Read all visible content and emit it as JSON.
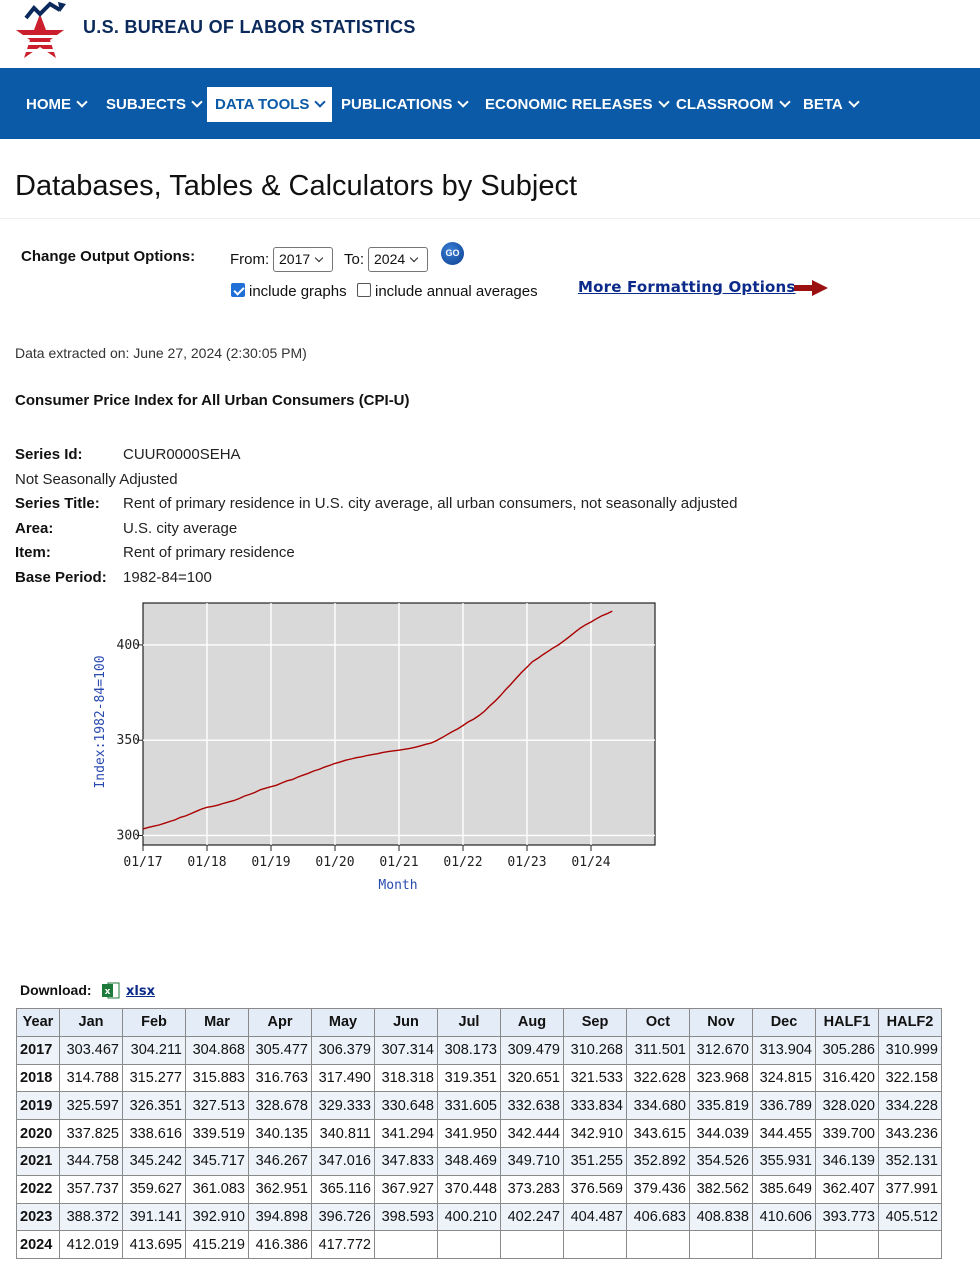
{
  "header": {
    "brand": "U.S. BUREAU OF LABOR STATISTICS"
  },
  "nav": [
    {
      "label": "HOME",
      "active": false
    },
    {
      "label": "SUBJECTS",
      "active": false
    },
    {
      "label": "DATA TOOLS",
      "active": true
    },
    {
      "label": "PUBLICATIONS",
      "active": false
    },
    {
      "label": "ECONOMIC RELEASES",
      "active": false
    },
    {
      "label": "CLASSROOM",
      "active": false
    },
    {
      "label": "BETA",
      "active": false
    }
  ],
  "page": {
    "title": "Databases, Tables & Calculators by Subject",
    "options": {
      "label": "Change Output Options:",
      "from_label": "From:",
      "from_value": "2017",
      "to_label": "To:",
      "to_value": "2024",
      "go_label": "GO",
      "include_graphs": "include graphs",
      "include_graphs_checked": true,
      "include_annual": "include annual averages",
      "include_annual_checked": false,
      "more_formatting": "More Formatting Options"
    },
    "extracted": "Data extracted on: June 27, 2024 (2:30:05 PM)",
    "survey_title": "Consumer Price Index for All Urban Consumers (CPI-U)",
    "series": {
      "id_label": "Series Id:",
      "id_value": "CUUR0000SEHA",
      "adjustment": "Not Seasonally Adjusted",
      "title_label": "Series Title:",
      "title_value": "Rent of primary residence in U.S. city average, all urban consumers, not seasonally adjusted",
      "area_label": "Area:",
      "area_value": "U.S. city average",
      "item_label": "Item:",
      "item_value": "Rent of primary residence",
      "base_label": "Base Period:",
      "base_value": "1982-84=100"
    },
    "download_label": "Download:",
    "download_link": "xlsx"
  },
  "colors": {
    "nav_bg": "#0b5aa7",
    "line": "#aa0000",
    "plot_bg": "#d9d9d9"
  },
  "chart_data": {
    "type": "line",
    "xlabel": "Month",
    "ylabel": "Index:1982-84=100",
    "x_ticks": [
      "01/17",
      "01/18",
      "01/19",
      "01/20",
      "01/21",
      "01/22",
      "01/23",
      "01/24"
    ],
    "y_ticks": [
      300,
      350,
      400
    ],
    "ylim": [
      295,
      422
    ],
    "grid": true,
    "series": [
      {
        "values": [
          303.467,
          304.211,
          304.868,
          305.477,
          306.379,
          307.314,
          308.173,
          309.479,
          310.268,
          311.501,
          312.67,
          313.904,
          314.788,
          315.277,
          315.883,
          316.763,
          317.49,
          318.318,
          319.351,
          320.651,
          321.533,
          322.628,
          323.968,
          324.815,
          325.597,
          326.351,
          327.513,
          328.678,
          329.333,
          330.648,
          331.605,
          332.638,
          333.834,
          334.68,
          335.819,
          336.789,
          337.825,
          338.616,
          339.519,
          340.135,
          340.811,
          341.294,
          341.95,
          342.444,
          342.91,
          343.615,
          344.039,
          344.455,
          344.758,
          345.242,
          345.717,
          346.267,
          347.016,
          347.833,
          348.469,
          349.71,
          351.255,
          352.892,
          354.526,
          355.931,
          357.737,
          359.627,
          361.083,
          362.951,
          365.116,
          367.927,
          370.448,
          373.283,
          376.569,
          379.436,
          382.562,
          385.649,
          388.372,
          391.141,
          392.91,
          394.898,
          396.726,
          398.593,
          400.21,
          402.247,
          404.487,
          406.683,
          408.838,
          410.606,
          412.019,
          413.695,
          415.219,
          416.386,
          417.772
        ]
      }
    ]
  },
  "table": {
    "headers": [
      "Year",
      "Jan",
      "Feb",
      "Mar",
      "Apr",
      "May",
      "Jun",
      "Jul",
      "Aug",
      "Sep",
      "Oct",
      "Nov",
      "Dec",
      "HALF1",
      "HALF2"
    ],
    "rows": [
      [
        "2017",
        "303.467",
        "304.211",
        "304.868",
        "305.477",
        "306.379",
        "307.314",
        "308.173",
        "309.479",
        "310.268",
        "311.501",
        "312.670",
        "313.904",
        "305.286",
        "310.999"
      ],
      [
        "2018",
        "314.788",
        "315.277",
        "315.883",
        "316.763",
        "317.490",
        "318.318",
        "319.351",
        "320.651",
        "321.533",
        "322.628",
        "323.968",
        "324.815",
        "316.420",
        "322.158"
      ],
      [
        "2019",
        "325.597",
        "326.351",
        "327.513",
        "328.678",
        "329.333",
        "330.648",
        "331.605",
        "332.638",
        "333.834",
        "334.680",
        "335.819",
        "336.789",
        "328.020",
        "334.228"
      ],
      [
        "2020",
        "337.825",
        "338.616",
        "339.519",
        "340.135",
        "340.811",
        "341.294",
        "341.950",
        "342.444",
        "342.910",
        "343.615",
        "344.039",
        "344.455",
        "339.700",
        "343.236"
      ],
      [
        "2021",
        "344.758",
        "345.242",
        "345.717",
        "346.267",
        "347.016",
        "347.833",
        "348.469",
        "349.710",
        "351.255",
        "352.892",
        "354.526",
        "355.931",
        "346.139",
        "352.131"
      ],
      [
        "2022",
        "357.737",
        "359.627",
        "361.083",
        "362.951",
        "365.116",
        "367.927",
        "370.448",
        "373.283",
        "376.569",
        "379.436",
        "382.562",
        "385.649",
        "362.407",
        "377.991"
      ],
      [
        "2023",
        "388.372",
        "391.141",
        "392.910",
        "394.898",
        "396.726",
        "398.593",
        "400.210",
        "402.247",
        "404.487",
        "406.683",
        "408.838",
        "410.606",
        "393.773",
        "405.512"
      ],
      [
        "2024",
        "412.019",
        "413.695",
        "415.219",
        "416.386",
        "417.772",
        "",
        "",
        "",
        "",
        "",
        "",
        "",
        "",
        ""
      ]
    ]
  }
}
